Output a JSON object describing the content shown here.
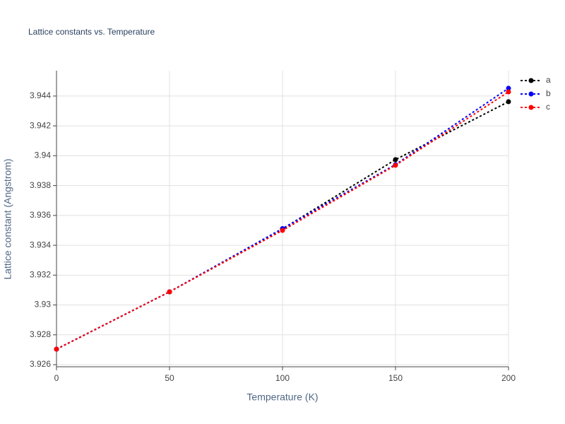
{
  "chart_data": {
    "type": "line",
    "title": "Lattice constants vs. Temperature",
    "x_label": "Temperature (K)",
    "y_label": "Lattice constant (Angstrom)",
    "x": [
      0,
      50,
      100,
      150,
      200
    ],
    "series": [
      {
        "name": "a",
        "color": "#000000",
        "values": [
          3.92704,
          3.93088,
          3.9351,
          3.93974,
          3.94362
        ]
      },
      {
        "name": "b",
        "color": "#0000ff",
        "values": [
          3.92704,
          3.93088,
          3.93512,
          3.93941,
          3.94452
        ]
      },
      {
        "name": "c",
        "color": "#ff0000",
        "values": [
          3.92704,
          3.93088,
          3.935,
          3.93936,
          3.94428
        ]
      }
    ],
    "xlim": [
      0,
      200
    ],
    "xticks": [
      0,
      50,
      100,
      150,
      200
    ],
    "ylim": [
      3.92586,
      3.9457
    ],
    "yticks": [
      3.926,
      3.928,
      3.93,
      3.932,
      3.934,
      3.936,
      3.938,
      3.94,
      3.942,
      3.944
    ],
    "grid": true,
    "legend": "right"
  }
}
